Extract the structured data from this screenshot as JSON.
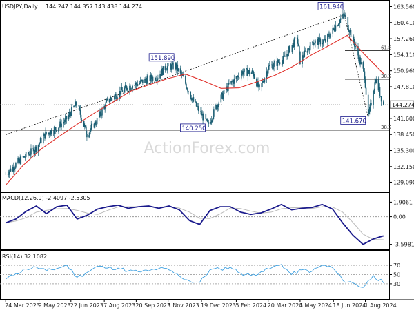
{
  "chart_data": {
    "type": "candlestick",
    "symbol_title": "USDJPY,Daily",
    "ohlc_readout": "144.247 144.357 143.438 144.274",
    "watermark": "ActionForex.com",
    "current_price": 144.274,
    "current_price_label": "144.274",
    "price_axis": {
      "range": [
        127.8,
        164.3
      ],
      "ticks": [
        "163.560",
        "160.410",
        "157.260",
        "154.110",
        "150.960",
        "147.810",
        "144.660",
        "141.600",
        "138.450",
        "135.300",
        "132.150",
        "129.090"
      ]
    },
    "x_ticks": [
      "24 Mar 2023",
      "9 May 2023",
      "22 Jun 2023",
      "7 Aug 2023",
      "20 Sep 2023",
      "3 Nov 2023",
      "19 Dec 2023",
      "5 Feb 2024",
      "20 Mar 2024",
      "3 May 2024",
      "18 Jun 2024",
      "1 Aug 2024"
    ],
    "close_series": [
      {
        "date": "2023-03-24",
        "value": 130.7
      },
      {
        "date": "2023-04-14",
        "value": 133.5
      },
      {
        "date": "2023-05-03",
        "value": 135.5
      },
      {
        "date": "2023-05-18",
        "value": 138.5
      },
      {
        "date": "2023-06-01",
        "value": 139.6
      },
      {
        "date": "2023-06-15",
        "value": 141.3
      },
      {
        "date": "2023-06-30",
        "value": 144.6
      },
      {
        "date": "2023-07-14",
        "value": 138.5
      },
      {
        "date": "2023-07-28",
        "value": 141.2
      },
      {
        "date": "2023-08-11",
        "value": 144.9
      },
      {
        "date": "2023-08-25",
        "value": 146.4
      },
      {
        "date": "2023-09-08",
        "value": 147.8
      },
      {
        "date": "2023-09-22",
        "value": 148.4
      },
      {
        "date": "2023-10-06",
        "value": 149.3
      },
      {
        "date": "2023-10-20",
        "value": 149.9
      },
      {
        "date": "2023-10-31",
        "value": 151.7
      },
      {
        "date": "2023-11-13",
        "value": 151.9
      },
      {
        "date": "2023-11-24",
        "value": 149.4
      },
      {
        "date": "2023-12-08",
        "value": 144.9
      },
      {
        "date": "2023-12-28",
        "value": 140.3
      },
      {
        "date": "2024-01-12",
        "value": 145.0
      },
      {
        "date": "2024-01-26",
        "value": 148.1
      },
      {
        "date": "2024-02-13",
        "value": 150.7
      },
      {
        "date": "2024-02-28",
        "value": 150.6
      },
      {
        "date": "2024-03-08",
        "value": 147.1
      },
      {
        "date": "2024-03-20",
        "value": 151.6
      },
      {
        "date": "2024-04-10",
        "value": 153.2
      },
      {
        "date": "2024-04-29",
        "value": 157.5
      },
      {
        "date": "2024-05-03",
        "value": 152.9
      },
      {
        "date": "2024-05-20",
        "value": 156.6
      },
      {
        "date": "2024-06-07",
        "value": 156.8
      },
      {
        "date": "2024-06-26",
        "value": 160.8
      },
      {
        "date": "2024-07-03",
        "value": 161.9
      },
      {
        "date": "2024-07-17",
        "value": 156.2
      },
      {
        "date": "2024-07-31",
        "value": 150.0
      },
      {
        "date": "2024-08-05",
        "value": 141.7
      },
      {
        "date": "2024-08-15",
        "value": 149.3
      },
      {
        "date": "2024-08-26",
        "value": 144.3
      }
    ],
    "sma": {
      "values": [
        128.5,
        132.4,
        135.6,
        138.1,
        140.5,
        142.8,
        144.8,
        147.0,
        148.2,
        149.4,
        150.3,
        149.0,
        147.5,
        147.6,
        148.8,
        150.1,
        151.8,
        154.0,
        155.9,
        157.9,
        154.0,
        150.4
      ]
    },
    "annotations": [
      {
        "date": "2023-11-13",
        "value": 151.89,
        "label": "151.890"
      },
      {
        "date": "2023-12-28",
        "value": 140.25,
        "label": "140.250"
      },
      {
        "date": "2024-07-03",
        "value": 161.94,
        "label": "161.940"
      },
      {
        "date": "2024-08-05",
        "value": 141.67,
        "label": "141.670"
      }
    ],
    "fib_levels": [
      {
        "label": "61.8",
        "value": 154.9
      },
      {
        "label": "38.2",
        "value": 149.3
      },
      {
        "label": "38.2",
        "value": 139.3
      }
    ],
    "trend_lines": [
      {
        "from": {
          "date": "2023-03-24",
          "value": 138.4
        },
        "to": {
          "date": "2024-07-03",
          "value": 161.94
        }
      },
      {
        "from": {
          "date": "2024-07-03",
          "value": 161.94
        },
        "to": {
          "date": "2024-08-05",
          "value": 141.67
        }
      }
    ],
    "macd": {
      "title": "MACD(12,26,9) -2.4097 -2.5305",
      "ticks": [
        "1.9061",
        "0.00",
        "-3.5981"
      ],
      "range": [
        -3.9,
        2.3
      ],
      "values": [
        -0.8,
        -0.3,
        0.7,
        1.4,
        0.4,
        1.3,
        1.5,
        -0.3,
        0.2,
        1.0,
        1.3,
        1.5,
        1.1,
        1.3,
        1.4,
        1.1,
        1.4,
        0.9,
        -0.5,
        -1.0,
        0.8,
        1.3,
        1.3,
        0.6,
        0.3,
        0.5,
        1.0,
        1.6,
        0.9,
        1.1,
        1.2,
        1.6,
        1.0,
        -0.8,
        -2.4,
        -3.6,
        -2.9,
        -2.5
      ]
    },
    "rsi": {
      "title": "RSI(14) 32.1082",
      "ticks": [
        "70",
        "50",
        "30"
      ],
      "range": [
        0,
        100
      ],
      "values": [
        40,
        52,
        62,
        66,
        58,
        63,
        70,
        44,
        55,
        68,
        64,
        64,
        58,
        56,
        58,
        63,
        60,
        47,
        36,
        33,
        60,
        62,
        66,
        53,
        48,
        56,
        64,
        72,
        50,
        60,
        57,
        70,
        65,
        38,
        32,
        22,
        48,
        32
      ]
    },
    "colors": {
      "price": "#1c5f74",
      "sma": "#e0302a",
      "macd": "#1a1a8c",
      "macd_signal": "#bbbbbb",
      "rsi": "#3ea0e0",
      "label_border": "#1a1a8c"
    }
  }
}
